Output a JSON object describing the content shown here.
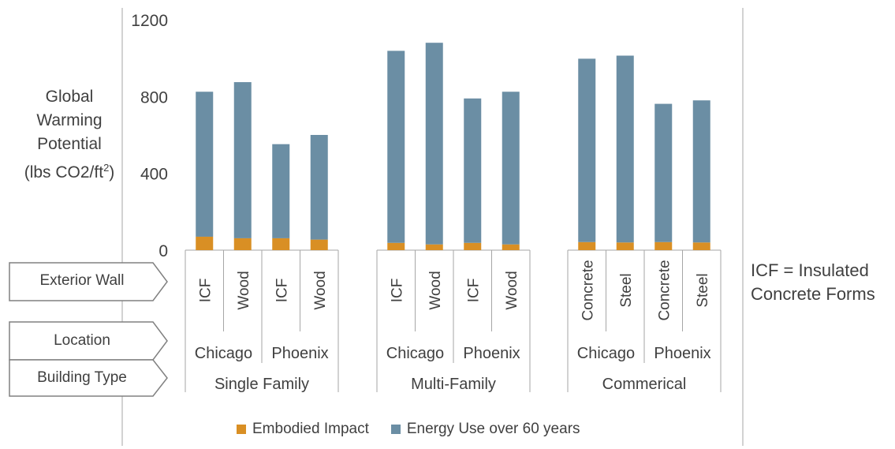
{
  "chart_data": {
    "type": "bar",
    "stacked": true,
    "ylabel_lines": [
      "Global",
      "Warming",
      "Potential",
      "(lbs CO2/ft",
      "2",
      ")"
    ],
    "ylim": [
      0,
      1200
    ],
    "yticks": [
      0,
      400,
      800,
      1200
    ],
    "ytick_labels": [
      "0",
      "400",
      "800",
      "1200"
    ],
    "categories": [
      "ICF",
      "Wood",
      "ICF",
      "Wood",
      "ICF",
      "Wood",
      "ICF",
      "Wood",
      "Concrete",
      "Steel",
      "Concrete",
      "Steel"
    ],
    "locations": [
      "Chicago",
      "Phoenix",
      "Chicago",
      "Phoenix",
      "Chicago",
      "Phoenix"
    ],
    "building_types": [
      "Single Family",
      "Multi-Family",
      "Commerical"
    ],
    "row_labels": [
      "Exterior Wall",
      "Location",
      "Building Type"
    ],
    "series": [
      {
        "name": "Embodied Impact",
        "color": "#D98F24",
        "values": [
          70,
          62,
          62,
          55,
          38,
          30,
          38,
          30,
          42,
          40,
          42,
          40
        ]
      },
      {
        "name": "Energy Use over 60 years",
        "color": "#6B8EA4",
        "values": [
          755,
          813,
          490,
          545,
          1000,
          1050,
          752,
          795,
          955,
          973,
          720,
          740
        ]
      }
    ],
    "grid": false,
    "legend_position": "bottom",
    "note": [
      "ICF = Insulated",
      "Concrete Forms"
    ]
  }
}
